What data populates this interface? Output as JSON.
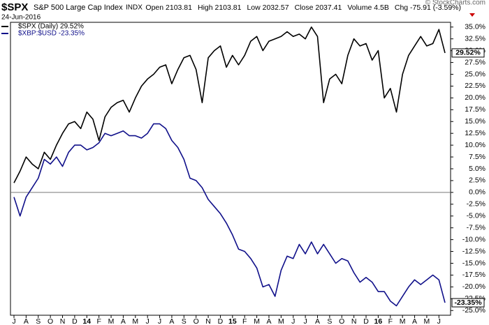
{
  "chart_data": {
    "type": "line",
    "title": "$SPX",
    "subtitle": "S&P 500 Large Cap Index",
    "exchange": "INDX",
    "date": "24-Jun-2016",
    "stats": [
      "Open 2103.81",
      "High 2103.81",
      "Low 2032.57",
      "Close 2037.41",
      "Volume 4.5B",
      "Chg -75.91 (-3.59%)"
    ],
    "credit": "© StockCharts.com",
    "categories": [
      "J",
      null,
      "A",
      null,
      "S",
      null,
      "O",
      null,
      "N",
      null,
      "D",
      null,
      "14",
      null,
      "F",
      null,
      "M",
      null,
      "A",
      null,
      "M",
      null,
      "J",
      null,
      "J",
      null,
      "A",
      null,
      "S",
      null,
      "O",
      null,
      "N",
      null,
      "D",
      null,
      "15",
      null,
      "F",
      null,
      "M",
      null,
      "A",
      null,
      "M",
      null,
      "J",
      null,
      "J",
      null,
      "A",
      null,
      "S",
      null,
      "O",
      null,
      "N",
      null,
      "D",
      null,
      "16",
      null,
      "F",
      null,
      "M",
      null,
      "A",
      null,
      "M",
      null,
      "J",
      null
    ],
    "series": [
      {
        "name": "$SPX (Daily) 29.52%",
        "color": "#000000",
        "end_label": "29.52%",
        "values": [
          2,
          4.5,
          7.5,
          6,
          5,
          8.5,
          7,
          10,
          12.5,
          14.5,
          15,
          13.5,
          17,
          15.5,
          11,
          16,
          18,
          19,
          19.5,
          17,
          20,
          22.5,
          24,
          25,
          26.5,
          27,
          23,
          26,
          28.5,
          29,
          26,
          19,
          28.5,
          30,
          31,
          26.5,
          29,
          27,
          29,
          32,
          33,
          30,
          32,
          32.5,
          33,
          34,
          33,
          33.5,
          32.5,
          35,
          33,
          19,
          24,
          25,
          23,
          29,
          32.5,
          31,
          31.5,
          28,
          30,
          20,
          22,
          17,
          25,
          29,
          31,
          33,
          31,
          31.5,
          34.5,
          29.52
        ]
      },
      {
        "name": "$XBP:$USD -23.35%",
        "color": "#10108a",
        "end_label": "-23.35%",
        "values": [
          -1,
          -5,
          -1,
          1,
          3,
          7,
          6,
          7.5,
          5.5,
          8.5,
          10,
          10,
          9,
          9.5,
          10.5,
          12.5,
          12,
          12.5,
          13,
          12,
          12,
          11.5,
          12.5,
          14.5,
          14.5,
          13.5,
          11,
          9.5,
          7,
          3,
          2.5,
          1,
          -1.5,
          -3,
          -4.5,
          -6.5,
          -9,
          -12,
          -12.5,
          -14,
          -16,
          -20,
          -19.5,
          -22,
          -16.5,
          -13.5,
          -14,
          -11,
          -13,
          -10.5,
          -13,
          -11,
          -13,
          -15,
          -14,
          -14.5,
          -17,
          -19,
          -18,
          -19,
          -21,
          -21,
          -23,
          -24,
          -22,
          -20,
          -18.5,
          -19.5,
          -18.5,
          -17.5,
          -18.5,
          -23.35
        ]
      }
    ],
    "ylim": [
      -26,
      36
    ],
    "yticks": [
      {
        "value": 35,
        "label": "35.0%"
      },
      {
        "value": 32.5,
        "label": "32.5%"
      },
      {
        "value": 30,
        "label": "30.0%"
      },
      {
        "value": 27.5,
        "label": "27.5%"
      },
      {
        "value": 25,
        "label": "25.0%"
      },
      {
        "value": 22.5,
        "label": "22.5%"
      },
      {
        "value": 20,
        "label": "20.0%"
      },
      {
        "value": 17.5,
        "label": "17.5%"
      },
      {
        "value": 15,
        "label": "15.0%"
      },
      {
        "value": 12.5,
        "label": "12.5%"
      },
      {
        "value": 10,
        "label": "10.0%"
      },
      {
        "value": 7.5,
        "label": "7.5%"
      },
      {
        "value": 5,
        "label": "5.0%"
      },
      {
        "value": 2.5,
        "label": "2.5%"
      },
      {
        "value": 0,
        "label": "0.0%"
      },
      {
        "value": -2.5,
        "label": "-2.5%"
      },
      {
        "value": -5,
        "label": "-5.0%"
      },
      {
        "value": -7.5,
        "label": "-7.5%"
      },
      {
        "value": -10,
        "label": "-10.0%"
      },
      {
        "value": -12.5,
        "label": "-12.5%"
      },
      {
        "value": -15,
        "label": "-15.0%"
      },
      {
        "value": -17.5,
        "label": "-17.5%"
      },
      {
        "value": -20,
        "label": "-20.0%"
      },
      {
        "value": -22.5,
        "label": "-22.5%"
      },
      {
        "value": -25,
        "label": "-25.0%"
      }
    ],
    "grid": false
  }
}
